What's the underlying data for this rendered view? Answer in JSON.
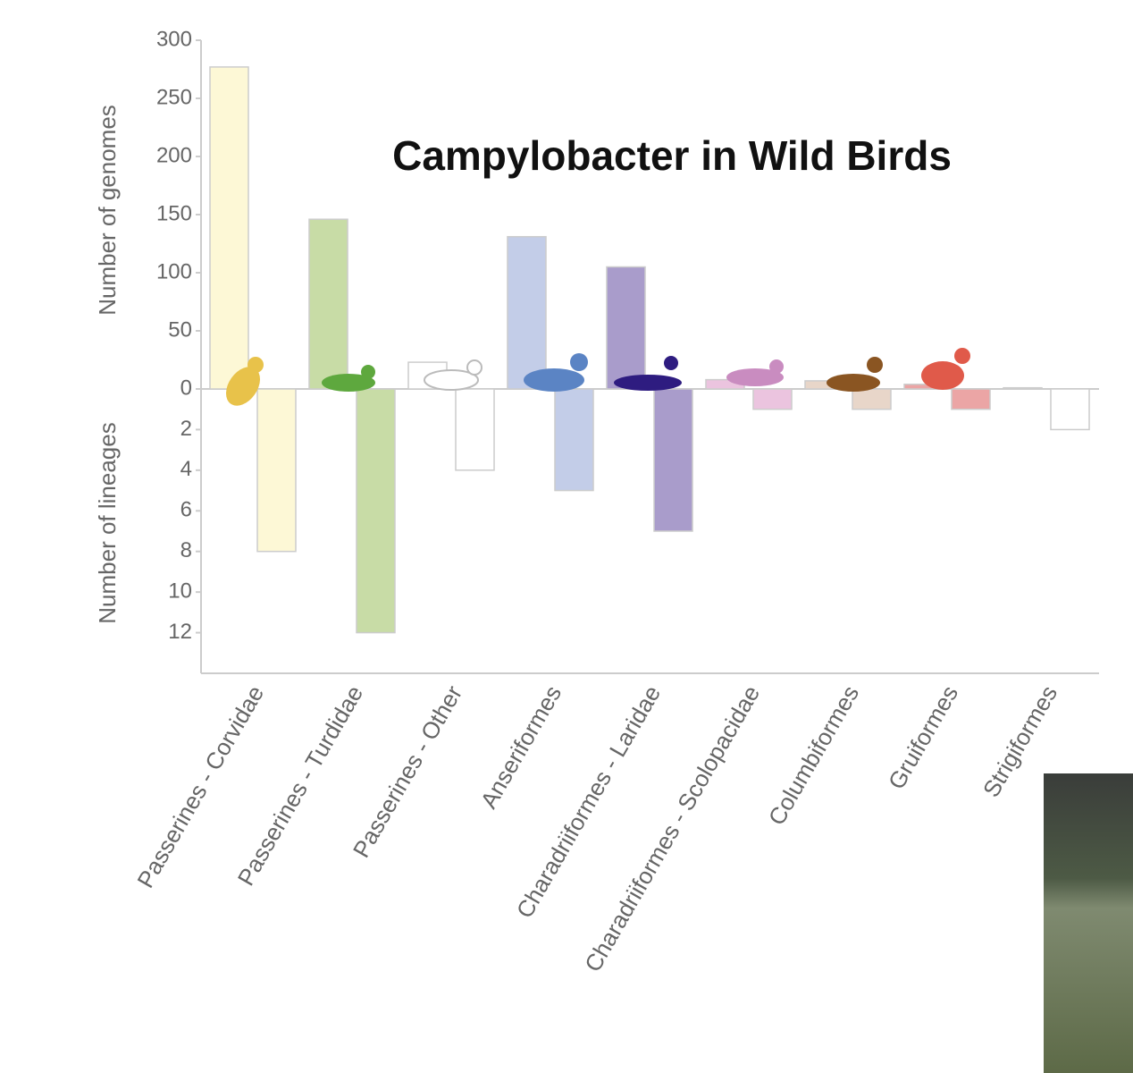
{
  "chart_data": {
    "type": "bar",
    "title": "Campylobacter in Wild Birds",
    "categories": [
      "Passerines - Corvidae",
      "Passerines - Turdidae",
      "Passerines - Other",
      "Anseriformes",
      "Charadriiformes - Laridae",
      "Charadriiformes - Scolopacidae",
      "Columbiformes",
      "Gruiformes",
      "Strigiformes"
    ],
    "colors": [
      "#fdf8d6",
      "#c8dca6",
      "#ffffff",
      "#c3cde8",
      "#a99ccb",
      "#ebc4df",
      "#e8d6c9",
      "#eba5a5",
      "#ffffff"
    ],
    "series": [
      {
        "name": "Number of genomes",
        "values": [
          277,
          146,
          23,
          131,
          105,
          8,
          7,
          4,
          1
        ]
      },
      {
        "name": "Number of lineages",
        "axis": "y2",
        "values": [
          8,
          12,
          4,
          5,
          7,
          1,
          1,
          1,
          2
        ]
      }
    ],
    "ylim": [
      0,
      300
    ],
    "yticks": [
      0,
      50,
      100,
      150,
      200,
      250,
      300
    ],
    "y2lim": [
      0,
      14
    ],
    "y2ticks": [
      2,
      4,
      6,
      8,
      10,
      12
    ]
  }
}
